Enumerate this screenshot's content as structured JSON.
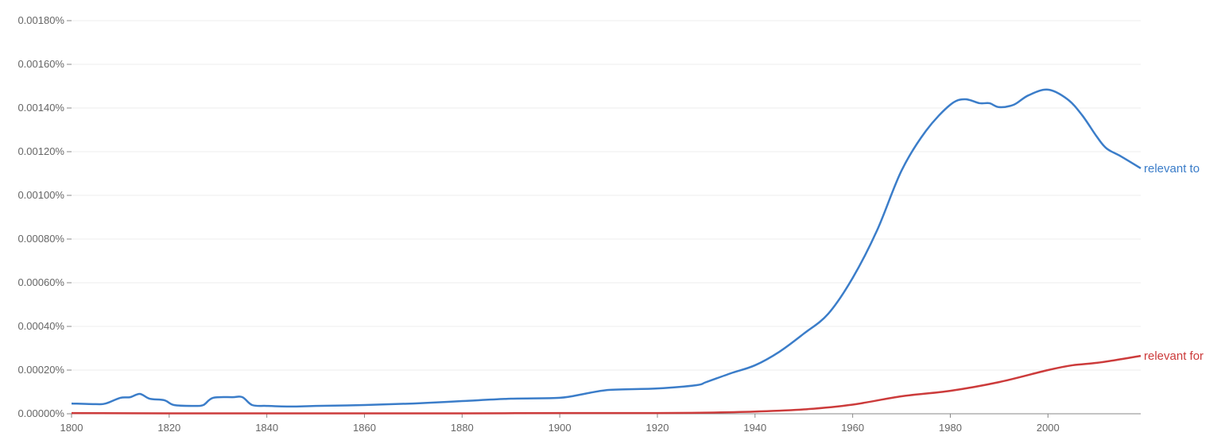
{
  "chart_data": {
    "type": "line",
    "title": "",
    "xlabel": "",
    "ylabel": "",
    "xlim": [
      1800,
      2019
    ],
    "ylim": [
      0,
      0.0018
    ],
    "grid": true,
    "legend": "inline-right",
    "x_ticks": [
      "1800",
      "1820",
      "1840",
      "1860",
      "1880",
      "1900",
      "1920",
      "1940",
      "1960",
      "1980",
      "2000"
    ],
    "x_tick_values": [
      1800,
      1820,
      1840,
      1860,
      1880,
      1900,
      1920,
      1940,
      1960,
      1980,
      2000
    ],
    "y_ticks": [
      "0.00000%",
      "0.00020%",
      "0.00040%",
      "0.00060%",
      "0.00080%",
      "0.00100%",
      "0.00120%",
      "0.00140%",
      "0.00160%",
      "0.00180%"
    ],
    "y_tick_values": [
      0,
      0.0002,
      0.0004,
      0.0006,
      0.0008,
      0.001,
      0.0012,
      0.0014,
      0.0016,
      0.0018
    ],
    "series": [
      {
        "name": "relevant to",
        "color": "#3b7dc9",
        "x": [
          1800,
          1805,
          1807,
          1810,
          1812,
          1814,
          1816,
          1819,
          1821,
          1825,
          1827,
          1829,
          1833,
          1835,
          1837,
          1840,
          1845,
          1850,
          1860,
          1870,
          1880,
          1890,
          1900,
          1905,
          1910,
          1920,
          1928,
          1930,
          1935,
          1940,
          1945,
          1950,
          1955,
          1960,
          1965,
          1970,
          1975,
          1980,
          1983,
          1986,
          1988,
          1990,
          1993,
          1996,
          2000,
          2004,
          2007,
          2010,
          2012,
          2015,
          2019
        ],
        "values": [
          4.7e-05,
          4.4e-05,
          4.7e-05,
          7.3e-05,
          7.6e-05,
          9.1e-05,
          6.9e-05,
          6.2e-05,
          4e-05,
          3.6e-05,
          4e-05,
          7.3e-05,
          7.6e-05,
          7.6e-05,
          4e-05,
          3.6e-05,
          3.3e-05,
          3.6e-05,
          4e-05,
          4.7e-05,
          5.8e-05,
          6.9e-05,
          7.3e-05,
          9.1e-05,
          0.000109,
          0.000116,
          0.000131,
          0.000145,
          0.000185,
          0.000222,
          0.000284,
          0.000367,
          0.000458,
          0.000622,
          0.00084,
          0.001113,
          0.001295,
          0.001415,
          0.00144,
          0.001422,
          0.001422,
          0.001404,
          0.001415,
          0.001458,
          0.001484,
          0.00144,
          0.001367,
          0.001269,
          0.001215,
          0.001178,
          0.001124
        ]
      },
      {
        "name": "relevant for",
        "color": "#cc3b3b",
        "x": [
          1800,
          1820,
          1840,
          1860,
          1880,
          1900,
          1920,
          1930,
          1940,
          1950,
          1960,
          1970,
          1980,
          1990,
          2000,
          2005,
          2010,
          2015,
          2019
        ],
        "values": [
          3e-06,
          2e-06,
          2e-06,
          2e-06,
          2e-06,
          3e-06,
          3e-06,
          5e-06,
          1e-05,
          2e-05,
          4.2e-05,
          8e-05,
          0.000105,
          0.000145,
          0.0002,
          0.000222,
          0.000233,
          0.00025,
          0.000265
        ]
      }
    ]
  }
}
